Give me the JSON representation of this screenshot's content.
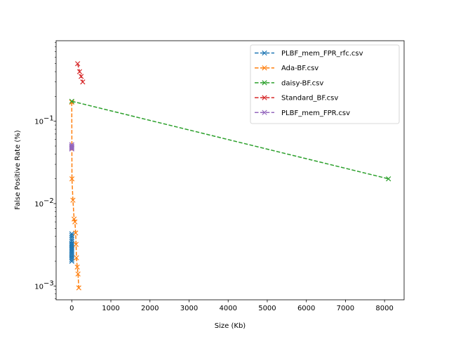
{
  "chart_data": {
    "type": "line",
    "title": "",
    "xlabel": "Size (Kb)",
    "ylabel": "False Positive Rate (%)",
    "xlim": [
      -400,
      8500
    ],
    "ylim": [
      0.00068,
      0.95
    ],
    "yscale": "log",
    "x_ticks": [
      0,
      1000,
      2000,
      3000,
      4000,
      5000,
      6000,
      7000,
      8000
    ],
    "x_tick_labels": [
      "0",
      "1000",
      "2000",
      "3000",
      "4000",
      "5000",
      "6000",
      "7000",
      "8000"
    ],
    "y_major_ticks": [
      0.001,
      0.01,
      0.1
    ],
    "y_tick_labels": [
      "10",
      "10",
      "10"
    ],
    "y_tick_exponents": [
      "−3",
      "−2",
      "−1"
    ],
    "grid": false,
    "legend_position": "top-right",
    "series": [
      {
        "name": "PLBF_mem_FPR_rfc.csv",
        "color": "#1f77b4",
        "linestyle": "dashed",
        "marker": "x",
        "x": [
          0,
          0,
          0,
          0,
          0,
          0,
          0,
          0,
          0,
          0,
          0,
          0,
          0,
          0,
          0,
          0,
          0,
          0,
          0,
          0
        ],
        "y": [
          0.0043,
          0.0041,
          0.0039,
          0.0037,
          0.0035,
          0.0033,
          0.0032,
          0.0031,
          0.003,
          0.0029,
          0.0028,
          0.0027,
          0.0026,
          0.0025,
          0.0024,
          0.0023,
          0.0022,
          0.0021,
          0.002,
          0.002
        ]
      },
      {
        "name": "Ada-BF.csv",
        "color": "#ff7f0e",
        "linestyle": "dashed",
        "marker": "x",
        "x": [
          0,
          5,
          30,
          60,
          80,
          100,
          110,
          120,
          140,
          160,
          180
        ],
        "y": [
          0.17,
          0.02,
          0.011,
          0.0065,
          0.006,
          0.0044,
          0.0032,
          0.0022,
          0.0017,
          0.0014,
          0.00095
        ]
      },
      {
        "name": "daisy-BF.csv",
        "color": "#2ca02c",
        "linestyle": "dashed",
        "marker": "x",
        "x": [
          0,
          8100
        ],
        "y": [
          0.175,
          0.02
        ]
      },
      {
        "name": "Standard_BF.csv",
        "color": "#d62728",
        "linestyle": "dashed",
        "marker": "x",
        "x": [
          150,
          200,
          240,
          280
        ],
        "y": [
          0.5,
          0.4,
          0.35,
          0.3
        ]
      },
      {
        "name": "PLBF_mem_FPR.csv",
        "color": "#9467bd",
        "linestyle": "dashed",
        "marker": "x",
        "x": [
          0,
          0,
          0,
          0,
          0,
          0
        ],
        "y": [
          0.052,
          0.05,
          0.049,
          0.048,
          0.047,
          0.046
        ]
      }
    ]
  }
}
